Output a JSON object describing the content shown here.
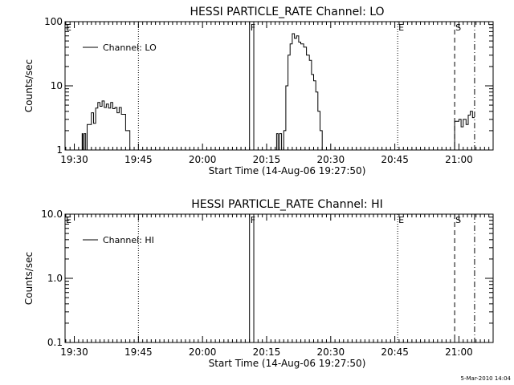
{
  "footer": {
    "timestamp": "5-Mar-2010 14:04"
  },
  "chart_data": [
    {
      "type": "line",
      "title": "HESSI PARTICLE_RATE Channel: LO",
      "xlabel": "Start Time (14-Aug-06 19:27:50)",
      "ylabel": "Counts/sec",
      "y_scale": "log",
      "xlim": [
        "19:27:50",
        "21:08:00"
      ],
      "ylim": [
        1,
        100
      ],
      "x_ticks": [
        "19:30",
        "19:45",
        "20:00",
        "20:15",
        "20:30",
        "20:45",
        "21:00"
      ],
      "y_ticks": [
        "1",
        "10",
        "100"
      ],
      "grid": false,
      "legend_position": "top-left",
      "series": [
        {
          "name": "Channel: LO",
          "points": [
            [
              "19:31:50",
              1
            ],
            [
              "19:32:00",
              1.8
            ],
            [
              "19:32:20",
              1.0
            ],
            [
              "19:32:40",
              1.8
            ],
            [
              "19:33:00",
              1.0
            ],
            [
              "19:33:20",
              2.5
            ],
            [
              "19:34:00",
              2.5
            ],
            [
              "19:34:30",
              3.8
            ],
            [
              "19:35:00",
              2.6
            ],
            [
              "19:35:30",
              4.5
            ],
            [
              "19:36:00",
              5.5
            ],
            [
              "19:36:30",
              4.8
            ],
            [
              "19:37:00",
              5.8
            ],
            [
              "19:37:30",
              4.6
            ],
            [
              "19:38:00",
              5.2
            ],
            [
              "19:38:30",
              4.5
            ],
            [
              "19:39:00",
              5.5
            ],
            [
              "19:39:30",
              4.4
            ],
            [
              "19:40:00",
              4.6
            ],
            [
              "19:40:30",
              3.8
            ],
            [
              "19:41:00",
              4.6
            ],
            [
              "19:42:00",
              3.6
            ],
            [
              "19:43:00",
              2.0
            ],
            [
              "19:43:40",
              1.0
            ],
            [
              "20:17:20",
              1.0
            ],
            [
              "20:17:40",
              1.8
            ],
            [
              "20:18:00",
              1.0
            ],
            [
              "20:18:30",
              1.8
            ],
            [
              "20:19:00",
              1.0
            ],
            [
              "20:19:30",
              2.0
            ],
            [
              "20:20:00",
              10
            ],
            [
              "20:20:30",
              30
            ],
            [
              "20:21:00",
              45
            ],
            [
              "20:21:30",
              65
            ],
            [
              "20:22:00",
              55
            ],
            [
              "20:22:30",
              60
            ],
            [
              "20:23:00",
              48
            ],
            [
              "20:23:40",
              45
            ],
            [
              "20:24:20",
              40
            ],
            [
              "20:25:00",
              30
            ],
            [
              "20:25:30",
              25
            ],
            [
              "20:26:00",
              15
            ],
            [
              "20:26:30",
              12
            ],
            [
              "20:27:00",
              8.0
            ],
            [
              "20:27:30",
              4.0
            ],
            [
              "20:28:00",
              2.0
            ],
            [
              "20:28:30",
              1.0
            ],
            [
              "20:59:00",
              1.0
            ],
            [
              "20:59:20",
              2.8
            ],
            [
              "21:00:00",
              2.8
            ],
            [
              "21:00:30",
              3.0
            ],
            [
              "21:01:00",
              2.3
            ],
            [
              "21:01:40",
              3.0
            ],
            [
              "21:02:10",
              2.5
            ],
            [
              "21:02:40",
              3.5
            ],
            [
              "21:03:10",
              4.0
            ],
            [
              "21:03:40",
              3.2
            ]
          ]
        }
      ],
      "markers": [
        {
          "label": "E",
          "style": "dotted",
          "t": "19:27:50"
        },
        {
          "label": "",
          "style": "dotted",
          "t": "19:45:00"
        },
        {
          "label": "F",
          "style": "solid",
          "t": "20:11:00"
        },
        {
          "label": "",
          "style": "solid",
          "t": "20:12:00"
        },
        {
          "label": "E",
          "style": "dotted",
          "t": "20:45:40"
        },
        {
          "label": "S",
          "style": "dashed",
          "t": "20:59:00"
        },
        {
          "label": "",
          "style": "dashdot",
          "t": "21:03:40"
        }
      ]
    },
    {
      "type": "line",
      "title": "HESSI PARTICLE_RATE Channel: HI",
      "xlabel": "Start Time (14-Aug-06 19:27:50)",
      "ylabel": "Counts/sec",
      "y_scale": "log",
      "xlim": [
        "19:27:50",
        "21:08:00"
      ],
      "ylim": [
        0.1,
        10
      ],
      "x_ticks": [
        "19:30",
        "19:45",
        "20:00",
        "20:15",
        "20:30",
        "20:45",
        "21:00"
      ],
      "y_ticks": [
        "0.1",
        "1.0",
        "10.0"
      ],
      "grid": false,
      "legend_position": "top-left",
      "series": [
        {
          "name": "Channel: HI",
          "points": []
        }
      ],
      "markers": [
        {
          "label": "E",
          "style": "dotted",
          "t": "19:27:50"
        },
        {
          "label": "",
          "style": "dotted",
          "t": "19:45:00"
        },
        {
          "label": "F",
          "style": "solid",
          "t": "20:11:00"
        },
        {
          "label": "",
          "style": "solid",
          "t": "20:12:00"
        },
        {
          "label": "E",
          "style": "dotted",
          "t": "20:45:40"
        },
        {
          "label": "S",
          "style": "dashed",
          "t": "20:59:00"
        },
        {
          "label": "",
          "style": "dashdot",
          "t": "21:03:40"
        }
      ]
    }
  ]
}
